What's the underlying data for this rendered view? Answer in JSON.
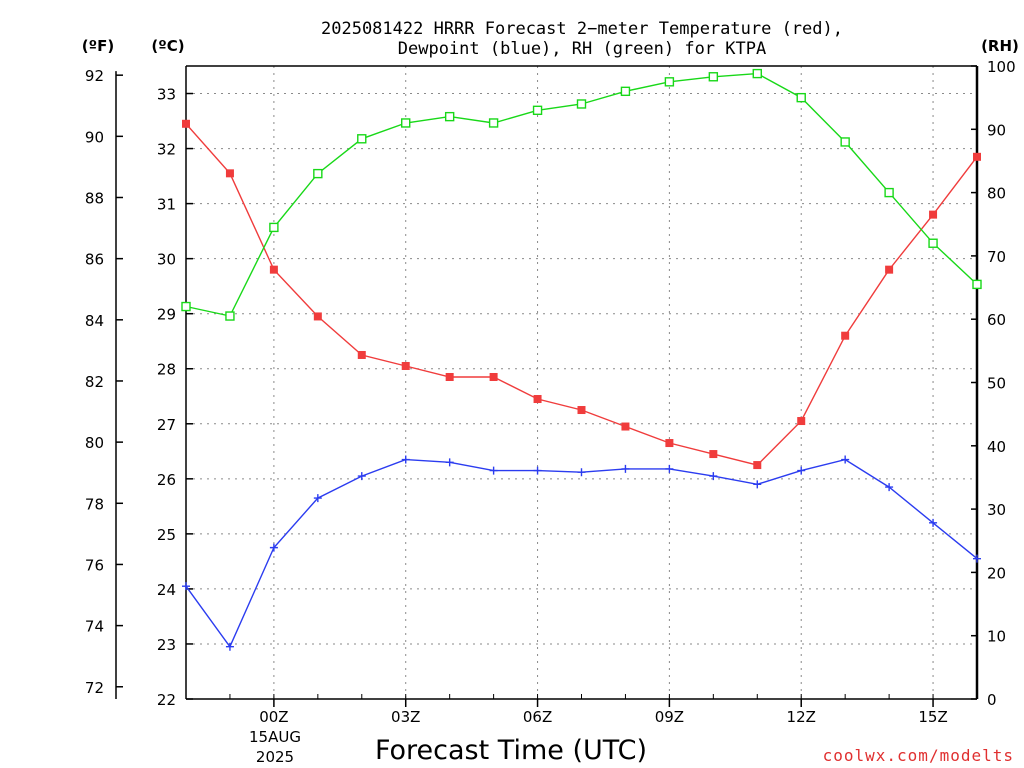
{
  "title_line1": "2025081422 HRRR Forecast 2−meter Temperature (red),",
  "title_line2": "Dewpoint (blue), RH (green) for KTPA",
  "unit_f": "(ºF)",
  "unit_c": "(ºC)",
  "unit_rh": "(RH)",
  "xlabel": "Forecast Time (UTC)",
  "date_label_day": "15AUG",
  "date_label_year": "2025",
  "watermark": "coolwx.com/modelts",
  "colors": {
    "temperature": "#f03c3c",
    "dewpoint": "#2b3cf0",
    "rh": "#18d818",
    "watermark": "#e03030",
    "grid": "#8a8a8a"
  },
  "chart_data": {
    "type": "line",
    "title": "2025081422 HRRR Forecast 2−meter Temperature (red), Dewpoint (blue), RH (green) for KTPA",
    "xlabel": "Forecast Time (UTC)",
    "x": [
      "22Z",
      "23Z",
      "00Z",
      "01Z",
      "02Z",
      "03Z",
      "04Z",
      "05Z",
      "06Z",
      "07Z",
      "08Z",
      "09Z",
      "10Z",
      "11Z",
      "12Z",
      "13Z",
      "14Z",
      "15Z",
      "16Z"
    ],
    "x_tick_labels": [
      "00Z",
      "03Z",
      "06Z",
      "09Z",
      "12Z",
      "15Z"
    ],
    "x_tick_hours": [
      "00Z",
      "03Z",
      "06Z",
      "09Z",
      "12Z",
      "15Z"
    ],
    "ylim_celsius": [
      22,
      33.5
    ],
    "ylim_rh": [
      0,
      100
    ],
    "yticks_celsius": [
      22,
      23,
      24,
      25,
      26,
      27,
      28,
      29,
      30,
      31,
      32,
      33
    ],
    "yticks_fahrenheit": [
      72,
      74,
      76,
      78,
      80,
      82,
      84,
      86,
      88,
      90,
      92
    ],
    "yticks_rh": [
      0,
      10,
      20,
      30,
      40,
      50,
      60,
      70,
      80,
      90,
      100
    ],
    "grid": true,
    "series": [
      {
        "name": "Temperature",
        "axis": "celsius",
        "marker": "filled-square",
        "values": [
          32.45,
          31.55,
          29.8,
          28.95,
          28.25,
          28.05,
          27.85,
          27.85,
          27.45,
          27.25,
          26.95,
          26.65,
          26.45,
          26.25,
          27.05,
          28.6,
          29.8,
          30.8,
          31.85
        ]
      },
      {
        "name": "Dewpoint",
        "axis": "celsius",
        "marker": "plus",
        "values": [
          24.05,
          22.95,
          24.75,
          25.65,
          26.05,
          26.35,
          26.3,
          26.15,
          26.15,
          26.12,
          26.18,
          26.18,
          26.05,
          25.9,
          26.15,
          26.35,
          25.85,
          25.2,
          24.55
        ]
      },
      {
        "name": "RH",
        "axis": "rh",
        "marker": "open-square",
        "values": [
          62,
          60.5,
          74.5,
          83,
          88.5,
          91,
          92,
          91,
          93,
          94,
          96,
          97.5,
          98.3,
          98.8,
          95,
          88,
          80,
          72,
          65.5
        ]
      }
    ]
  }
}
